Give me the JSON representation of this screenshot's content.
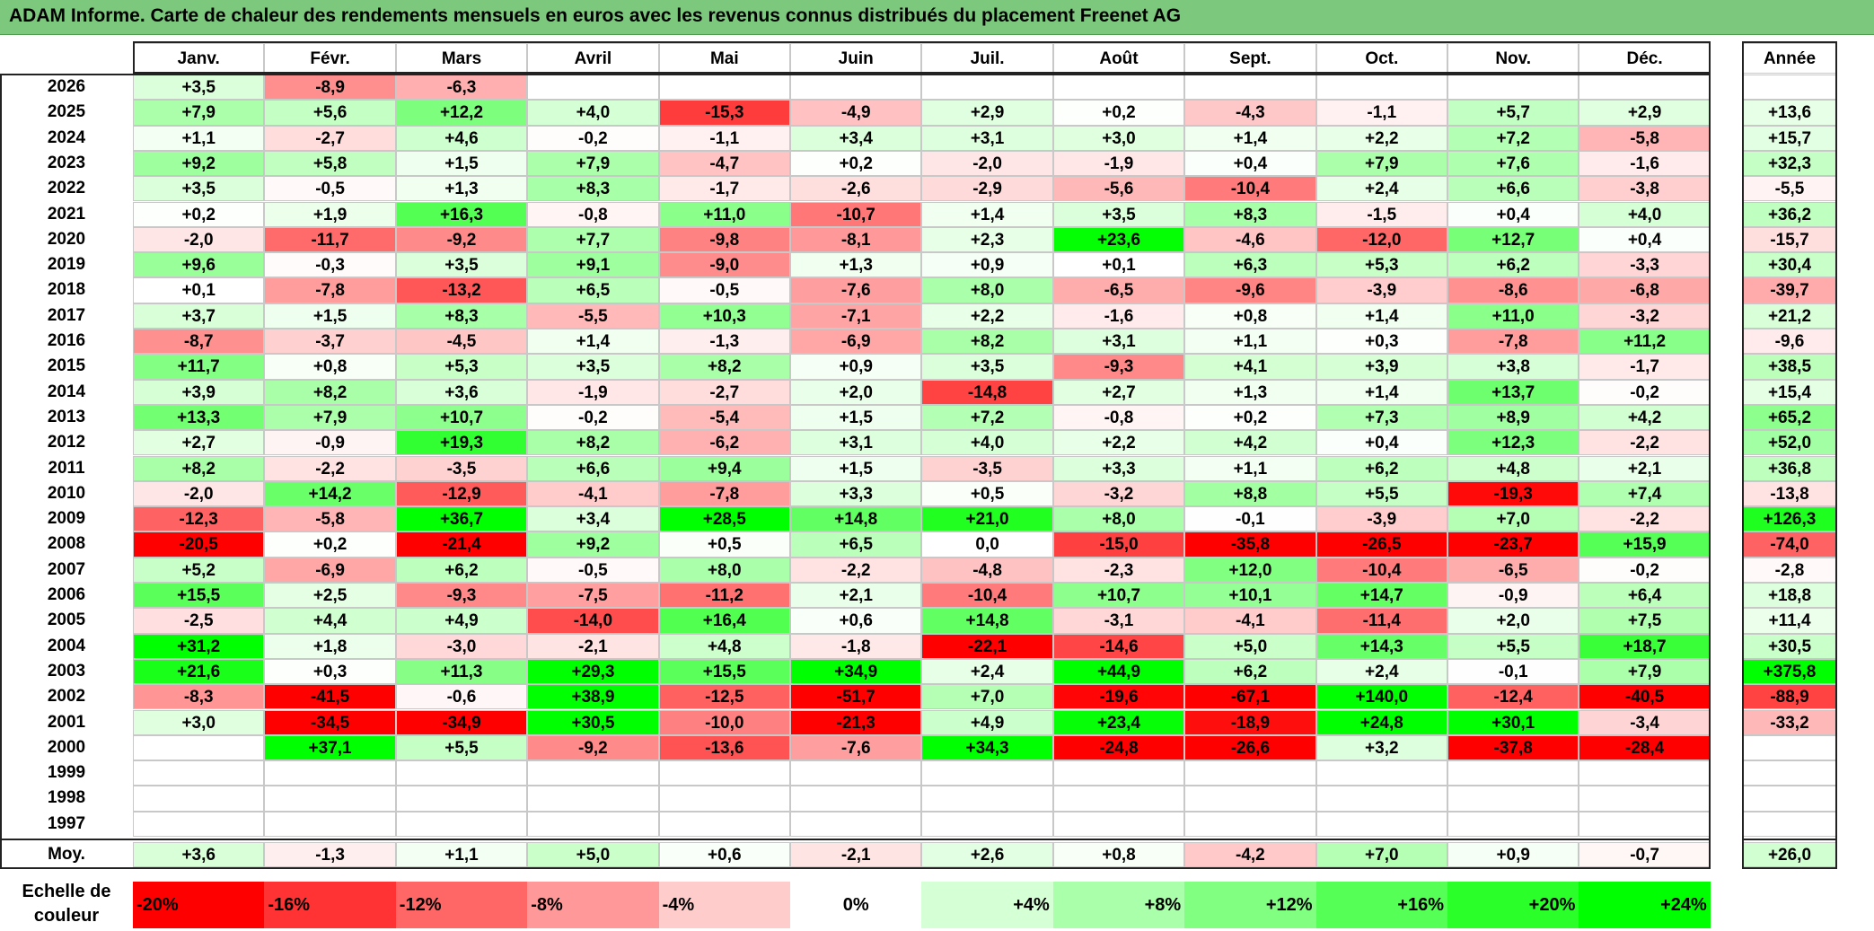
{
  "title": "ADAM Informe. Carte de chaleur des rendements mensuels en euros avec les revenus connus distribués du placement Freenet AG",
  "colors": {
    "header_green": "#7cc87c",
    "positive": "#00ff00",
    "negative": "#ff0000",
    "neutral": "#ffffff"
  },
  "chart_data": {
    "type": "heatmap",
    "title": "ADAM Informe. Carte de chaleur des rendements mensuels en euros avec les revenus connus distribués du placement Freenet AG",
    "months": [
      "Janv.",
      "Févr.",
      "Mars",
      "Avril",
      "Mai",
      "Juin",
      "Juil.",
      "Août",
      "Sept.",
      "Oct.",
      "Nov.",
      "Déc."
    ],
    "annual_header": "Année",
    "rows": [
      {
        "year": "2026",
        "values": [
          "+3,5",
          "-8,9",
          "-6,3",
          "",
          "",
          "",
          "",
          "",
          "",
          "",
          "",
          ""
        ],
        "annual": ""
      },
      {
        "year": "2025",
        "values": [
          "+7,9",
          "+5,6",
          "+12,2",
          "+4,0",
          "-15,3",
          "-4,9",
          "+2,9",
          "+0,2",
          "-4,3",
          "-1,1",
          "+5,7",
          "+2,9"
        ],
        "annual": "+13,6"
      },
      {
        "year": "2024",
        "values": [
          "+1,1",
          "-2,7",
          "+4,6",
          "-0,2",
          "-1,1",
          "+3,4",
          "+3,1",
          "+3,0",
          "+1,4",
          "+2,2",
          "+7,2",
          "-5,8"
        ],
        "annual": "+15,7"
      },
      {
        "year": "2023",
        "values": [
          "+9,2",
          "+5,8",
          "+1,5",
          "+7,9",
          "-4,7",
          "+0,2",
          "-2,0",
          "-1,9",
          "+0,4",
          "+7,9",
          "+7,6",
          "-1,6"
        ],
        "annual": "+32,3"
      },
      {
        "year": "2022",
        "values": [
          "+3,5",
          "-0,5",
          "+1,3",
          "+8,3",
          "-1,7",
          "-2,6",
          "-2,9",
          "-5,6",
          "-10,4",
          "+2,4",
          "+6,6",
          "-3,8"
        ],
        "annual": "-5,5"
      },
      {
        "year": "2021",
        "values": [
          "+0,2",
          "+1,9",
          "+16,3",
          "-0,8",
          "+11,0",
          "-10,7",
          "+1,4",
          "+3,5",
          "+8,3",
          "-1,5",
          "+0,4",
          "+4,0"
        ],
        "annual": "+36,2"
      },
      {
        "year": "2020",
        "values": [
          "-2,0",
          "-11,7",
          "-9,2",
          "+7,7",
          "-9,8",
          "-8,1",
          "+2,3",
          "+23,6",
          "-4,6",
          "-12,0",
          "+12,7",
          "+0,4"
        ],
        "annual": "-15,7"
      },
      {
        "year": "2019",
        "values": [
          "+9,6",
          "-0,3",
          "+3,5",
          "+9,1",
          "-9,0",
          "+1,3",
          "+0,9",
          "+0,1",
          "+6,3",
          "+5,3",
          "+6,2",
          "-3,3"
        ],
        "annual": "+30,4"
      },
      {
        "year": "2018",
        "values": [
          "+0,1",
          "-7,8",
          "-13,2",
          "+6,5",
          "-0,5",
          "-7,6",
          "+8,0",
          "-6,5",
          "-9,6",
          "-3,9",
          "-8,6",
          "-6,8"
        ],
        "annual": "-39,7"
      },
      {
        "year": "2017",
        "values": [
          "+3,7",
          "+1,5",
          "+8,3",
          "-5,5",
          "+10,3",
          "-7,1",
          "+2,2",
          "-1,6",
          "+0,8",
          "+1,4",
          "+11,0",
          "-3,2"
        ],
        "annual": "+21,2"
      },
      {
        "year": "2016",
        "values": [
          "-8,7",
          "-3,7",
          "-4,5",
          "+1,4",
          "-1,3",
          "-6,9",
          "+8,2",
          "+3,1",
          "+1,1",
          "+0,3",
          "-7,8",
          "+11,2"
        ],
        "annual": "-9,6"
      },
      {
        "year": "2015",
        "values": [
          "+11,7",
          "+0,8",
          "+5,3",
          "+3,5",
          "+8,2",
          "+0,9",
          "+3,5",
          "-9,3",
          "+4,1",
          "+3,9",
          "+3,8",
          "-1,7"
        ],
        "annual": "+38,5"
      },
      {
        "year": "2014",
        "values": [
          "+3,9",
          "+8,2",
          "+3,6",
          "-1,9",
          "-2,7",
          "+2,0",
          "-14,8",
          "+2,7",
          "+1,3",
          "+1,4",
          "+13,7",
          "-0,2"
        ],
        "annual": "+15,4"
      },
      {
        "year": "2013",
        "values": [
          "+13,3",
          "+7,9",
          "+10,7",
          "-0,2",
          "-5,4",
          "+1,5",
          "+7,2",
          "-0,8",
          "+0,2",
          "+7,3",
          "+8,9",
          "+4,2"
        ],
        "annual": "+65,2"
      },
      {
        "year": "2012",
        "values": [
          "+2,7",
          "-0,9",
          "+19,3",
          "+8,2",
          "-6,2",
          "+3,1",
          "+4,0",
          "+2,2",
          "+4,2",
          "+0,4",
          "+12,3",
          "-2,2"
        ],
        "annual": "+52,0"
      },
      {
        "year": "2011",
        "values": [
          "+8,2",
          "-2,2",
          "-3,5",
          "+6,6",
          "+9,4",
          "+1,5",
          "-3,5",
          "+3,3",
          "+1,1",
          "+6,2",
          "+4,8",
          "+2,1"
        ],
        "annual": "+36,8"
      },
      {
        "year": "2010",
        "values": [
          "-2,0",
          "+14,2",
          "-12,9",
          "-4,1",
          "-7,8",
          "+3,3",
          "+0,5",
          "-3,2",
          "+8,8",
          "+5,5",
          "-19,3",
          "+7,4"
        ],
        "annual": "-13,8"
      },
      {
        "year": "2009",
        "values": [
          "-12,3",
          "-5,8",
          "+36,7",
          "+3,4",
          "+28,5",
          "+14,8",
          "+21,0",
          "+8,0",
          "-0,1",
          "-3,9",
          "+7,0",
          "-2,2"
        ],
        "annual": "+126,3"
      },
      {
        "year": "2008",
        "values": [
          "-20,5",
          "+0,2",
          "-21,4",
          "+9,2",
          "+0,5",
          "+6,5",
          "0,0",
          "-15,0",
          "-35,8",
          "-26,5",
          "-23,7",
          "+15,9"
        ],
        "annual": "-74,0"
      },
      {
        "year": "2007",
        "values": [
          "+5,2",
          "-6,9",
          "+6,2",
          "-0,5",
          "+8,0",
          "-2,2",
          "-4,8",
          "-2,3",
          "+12,0",
          "-10,4",
          "-6,5",
          "-0,2"
        ],
        "annual": "-2,8"
      },
      {
        "year": "2006",
        "values": [
          "+15,5",
          "+2,5",
          "-9,3",
          "-7,5",
          "-11,2",
          "+2,1",
          "-10,4",
          "+10,7",
          "+10,1",
          "+14,7",
          "-0,9",
          "+6,4"
        ],
        "annual": "+18,8"
      },
      {
        "year": "2005",
        "values": [
          "-2,5",
          "+4,4",
          "+4,9",
          "-14,0",
          "+16,4",
          "+0,6",
          "+14,8",
          "-3,1",
          "-4,1",
          "-11,4",
          "+2,0",
          "+7,5"
        ],
        "annual": "+11,4"
      },
      {
        "year": "2004",
        "values": [
          "+31,2",
          "+1,8",
          "-3,0",
          "-2,1",
          "+4,8",
          "-1,8",
          "-22,1",
          "-14,6",
          "+5,0",
          "+14,3",
          "+5,5",
          "+18,7"
        ],
        "annual": "+30,5"
      },
      {
        "year": "2003",
        "values": [
          "+21,6",
          "+0,3",
          "+11,3",
          "+29,3",
          "+15,5",
          "+34,9",
          "+2,4",
          "+44,9",
          "+6,2",
          "+2,4",
          "-0,1",
          "+7,9"
        ],
        "annual": "+375,8"
      },
      {
        "year": "2002",
        "values": [
          "-8,3",
          "-41,5",
          "-0,6",
          "+38,9",
          "-12,5",
          "-51,7",
          "+7,0",
          "-19,6",
          "-67,1",
          "+140,0",
          "-12,4",
          "-40,5"
        ],
        "annual": "-88,9"
      },
      {
        "year": "2001",
        "values": [
          "+3,0",
          "-34,5",
          "-34,9",
          "+30,5",
          "-10,0",
          "-21,3",
          "+4,9",
          "+23,4",
          "-18,9",
          "+24,8",
          "+30,1",
          "-3,4"
        ],
        "annual": "-33,2"
      },
      {
        "year": "2000",
        "values": [
          "",
          "+37,1",
          "+5,5",
          "-9,2",
          "-13,6",
          "-7,6",
          "+34,3",
          "-24,8",
          "-26,6",
          "+3,2",
          "-37,8",
          "-28,4"
        ],
        "annual": ""
      },
      {
        "year": "1999",
        "values": [
          "",
          "",
          "",
          "",
          "",
          "",
          "",
          "",
          "",
          "",
          "",
          ""
        ],
        "annual": ""
      },
      {
        "year": "1998",
        "values": [
          "",
          "",
          "",
          "",
          "",
          "",
          "",
          "",
          "",
          "",
          "",
          ""
        ],
        "annual": ""
      },
      {
        "year": "1997",
        "values": [
          "",
          "",
          "",
          "",
          "",
          "",
          "",
          "",
          "",
          "",
          "",
          ""
        ],
        "annual": ""
      }
    ],
    "average": {
      "label": "Moy.",
      "values": [
        "+3,6",
        "-1,3",
        "+1,1",
        "+5,0",
        "+0,6",
        "-2,1",
        "+2,6",
        "+0,8",
        "-4,2",
        "+7,0",
        "+0,9",
        "-0,7"
      ],
      "annual": "+26,0"
    },
    "scale": {
      "label": "Echelle de couleur",
      "steps": [
        "-20%",
        "-16%",
        "-12%",
        "-8%",
        "-4%",
        "0%",
        "+4%",
        "+8%",
        "+12%",
        "+16%",
        "+20%",
        "+24%"
      ]
    }
  }
}
